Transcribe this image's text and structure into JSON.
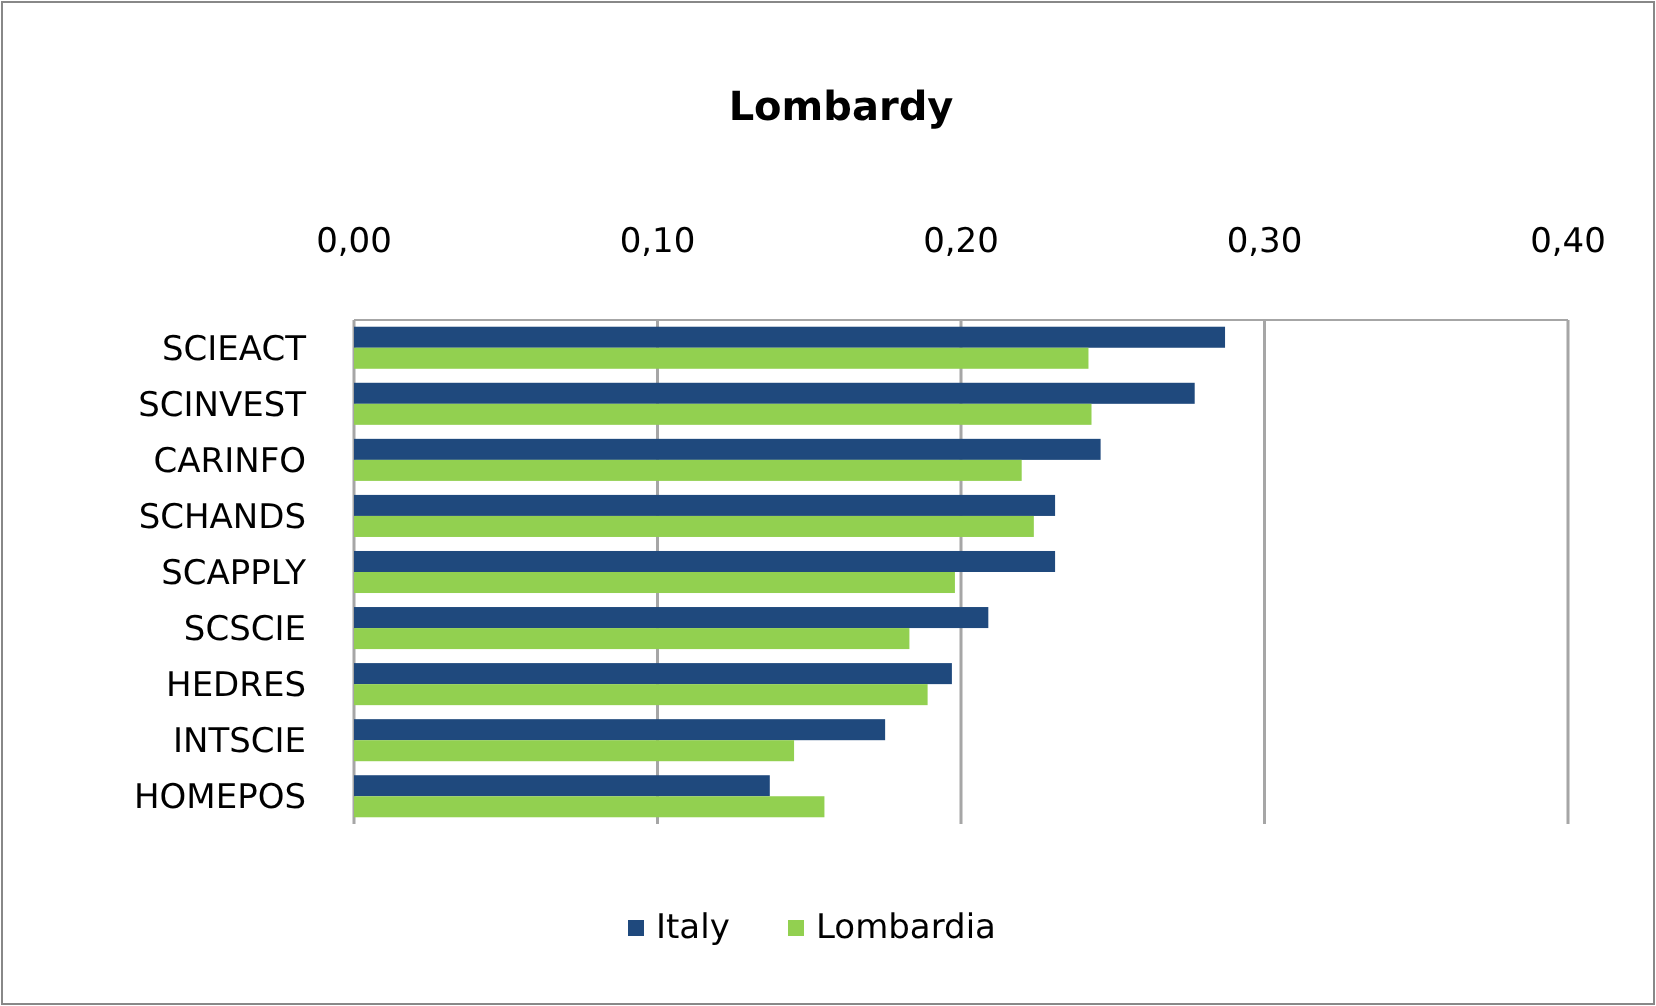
{
  "chart_data": {
    "type": "bar",
    "title": "Lombardy",
    "orientation": "horizontal",
    "categories": [
      "SCIEACT",
      "SCINVEST",
      "CARINFO",
      "SCHANDS",
      "SCAPPLY",
      "SCSCIE",
      "HEDRES",
      "INTSCIE",
      "HOMEPOS"
    ],
    "series": [
      {
        "name": "Italy",
        "color": "#1f497d",
        "values": [
          0.287,
          0.277,
          0.246,
          0.231,
          0.231,
          0.209,
          0.197,
          0.175,
          0.137
        ]
      },
      {
        "name": "Lombardia",
        "color": "#92d050",
        "values": [
          0.242,
          0.243,
          0.22,
          0.224,
          0.198,
          0.183,
          0.189,
          0.145,
          0.155
        ]
      }
    ],
    "xlim": [
      0,
      0.4
    ],
    "xticks": [
      {
        "value": 0,
        "label": "0,00"
      },
      {
        "value": 0.1,
        "label": "0,10"
      },
      {
        "value": 0.2,
        "label": "0,20"
      },
      {
        "value": 0.3,
        "label": "0,30"
      },
      {
        "value": 0.4,
        "label": "0,40"
      }
    ],
    "grid": "x",
    "legend": "bottom"
  }
}
